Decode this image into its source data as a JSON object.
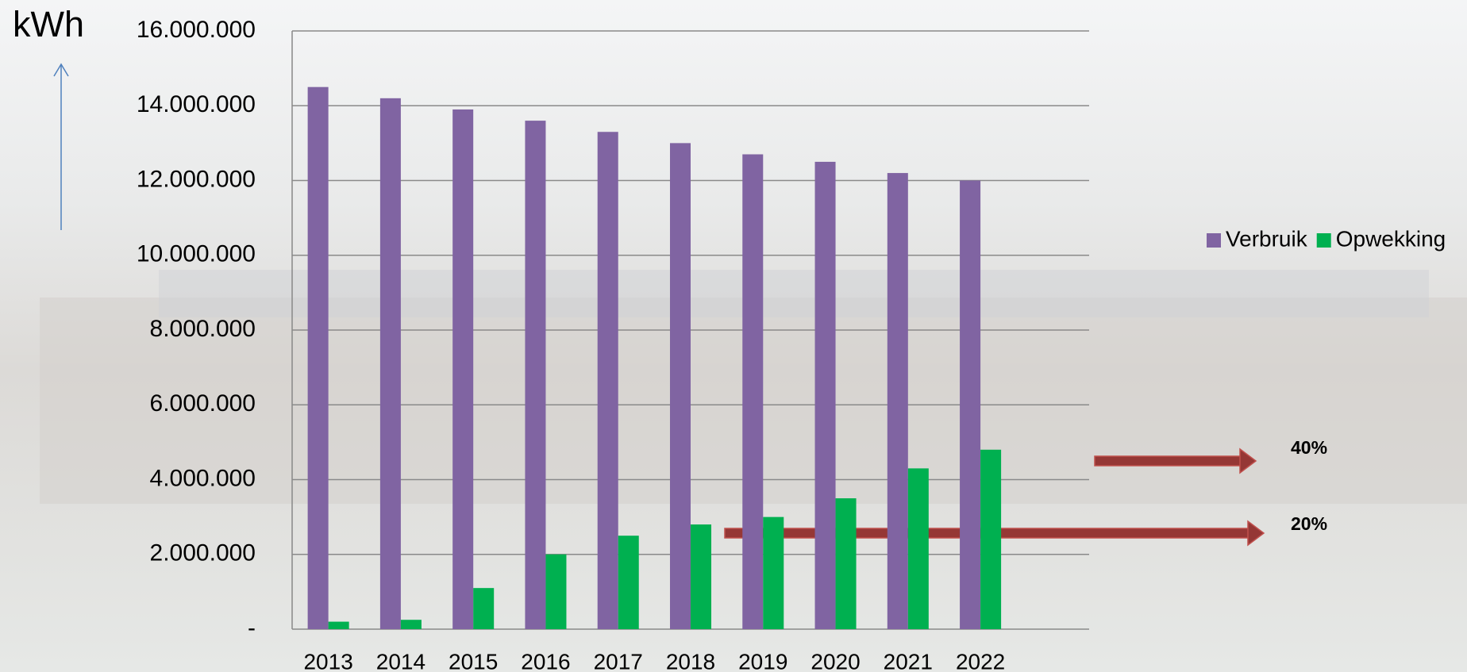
{
  "chart_data": {
    "type": "bar",
    "ylabel": "kWh",
    "categories": [
      "2013",
      "2014",
      "2015",
      "2016",
      "2017",
      "2018",
      "2019",
      "2020",
      "2021",
      "2022"
    ],
    "series": [
      {
        "name": "Verbruik",
        "color": "#8064a2",
        "values": [
          14500000,
          14200000,
          13900000,
          13600000,
          13300000,
          13000000,
          12700000,
          12500000,
          12200000,
          12000000
        ]
      },
      {
        "name": "Opwekking",
        "color": "#00b050",
        "values": [
          200000,
          250000,
          1100000,
          2000000,
          2500000,
          2800000,
          3000000,
          3500000,
          4300000,
          4800000
        ]
      }
    ],
    "ylim": [
      0,
      16000000
    ],
    "yticks": [
      {
        "value": 0,
        "label": "-"
      },
      {
        "value": 2000000,
        "label": "2.000.000"
      },
      {
        "value": 4000000,
        "label": "4.000.000"
      },
      {
        "value": 6000000,
        "label": "6.000.000"
      },
      {
        "value": 8000000,
        "label": "8.000.000"
      },
      {
        "value": 10000000,
        "label": "10.000.000"
      },
      {
        "value": 12000000,
        "label": "12.000.000"
      },
      {
        "value": 14000000,
        "label": "14.000.000"
      },
      {
        "value": 16000000,
        "label": "16.000.000"
      }
    ],
    "grid": true,
    "legend": "right",
    "annotations": [
      "40%",
      "20%"
    ]
  }
}
